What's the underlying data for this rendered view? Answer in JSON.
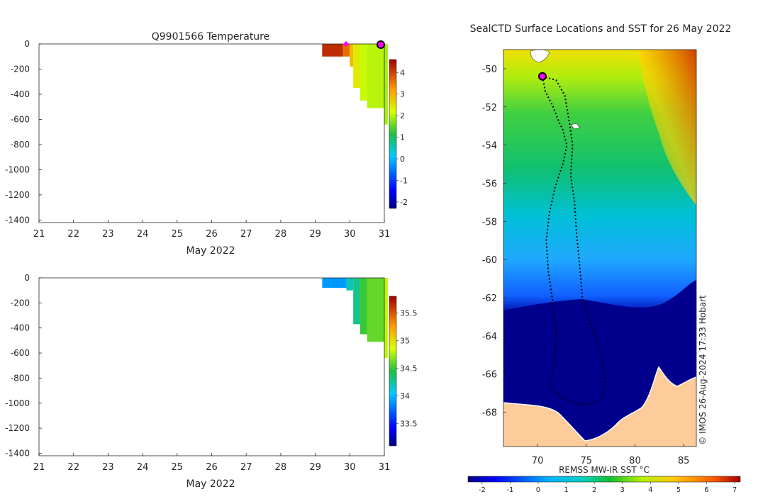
{
  "chart_data": [
    {
      "type": "heatmap",
      "title": "Q9901566  Temperature",
      "xlabel": "May 2022",
      "ylabel": "",
      "x_ticks": [
        "21",
        "22",
        "23",
        "24",
        "25",
        "26",
        "27",
        "28",
        "29",
        "30",
        "31"
      ],
      "xlim": [
        21,
        31
      ],
      "y_ticks": [
        "0",
        "-200",
        "-400",
        "-600",
        "-800",
        "-1000",
        "-1200",
        "-1400"
      ],
      "ylim": [
        -1420,
        0
      ],
      "colorbar": {
        "label": "",
        "ticks": [
          "4",
          "3",
          "2",
          "1",
          "0",
          "-1",
          "-2"
        ],
        "range": [
          -2.3,
          4.6
        ]
      },
      "profiles": [
        {
          "day": 29.2,
          "day_end": 29.8,
          "depth": -100,
          "value": 4.2
        },
        {
          "day": 29.8,
          "day_end": 30.0,
          "depth": -100,
          "value": 3.6
        },
        {
          "day": 30.0,
          "day_end": 30.1,
          "depth": -180,
          "value": 2.9
        },
        {
          "day": 30.1,
          "day_end": 30.3,
          "depth": -350,
          "value": 2.4
        },
        {
          "day": 30.3,
          "day_end": 30.5,
          "depth": -450,
          "value": 2.1
        },
        {
          "day": 30.5,
          "day_end": 31.0,
          "depth": -510,
          "value": 2.0
        },
        {
          "day": 31.0,
          "day_end": 31.1,
          "depth": -640,
          "value": 1.9
        }
      ],
      "markers": [
        {
          "day": 30.0,
          "label": "magenta-diamond"
        },
        {
          "day": 31.0,
          "label": "current-position"
        }
      ]
    },
    {
      "type": "heatmap",
      "title": "",
      "xlabel": "May 2022",
      "ylabel": "",
      "x_ticks": [
        "21",
        "22",
        "23",
        "24",
        "25",
        "26",
        "27",
        "28",
        "29",
        "30",
        "31"
      ],
      "xlim": [
        21,
        31
      ],
      "y_ticks": [
        "0",
        "-200",
        "-400",
        "-600",
        "-800",
        "-1000",
        "-1200",
        "-1400"
      ],
      "ylim": [
        -1420,
        0
      ],
      "colorbar": {
        "label": "",
        "ticks": [
          "35.5",
          "35",
          "34.5",
          "34",
          "33.5"
        ],
        "range": [
          33.1,
          35.8
        ]
      },
      "profiles": [
        {
          "day": 29.2,
          "day_end": 29.9,
          "depth": -80,
          "value": 33.9
        },
        {
          "day": 29.9,
          "day_end": 30.1,
          "depth": -100,
          "value": 34.2
        },
        {
          "day": 30.1,
          "day_end": 30.3,
          "depth": -370,
          "value": 34.3
        },
        {
          "day": 30.3,
          "day_end": 30.5,
          "depth": -450,
          "value": 34.5
        },
        {
          "day": 30.5,
          "day_end": 31.0,
          "depth": -510,
          "value": 34.6
        },
        {
          "day": 31.0,
          "day_end": 31.1,
          "depth": -640,
          "value": 34.8
        }
      ]
    },
    {
      "type": "heatmap",
      "title": "SealCTD Surface Locations and SST for 26 May 2022",
      "xlabel": "",
      "ylabel": "",
      "x_ticks": [
        "70",
        "75",
        "80",
        "85"
      ],
      "xlim": [
        66.5,
        86.3
      ],
      "y_ticks": [
        "-50",
        "-52",
        "-54",
        "-56",
        "-58",
        "-60",
        "-62",
        "-64",
        "-66",
        "-68"
      ],
      "ylim": [
        -69.8,
        -49.0
      ],
      "colorbar": {
        "label": "REMSS MW-IR SST °C",
        "ticks": [
          "-2",
          "-1",
          "0",
          "1",
          "2",
          "3",
          "4",
          "5",
          "6",
          "7"
        ],
        "range": [
          -2.5,
          7.2
        ]
      },
      "credit": "© IMOS 26-Aug-2024 17:33 Hobart",
      "track": [
        [
          70.5,
          -50.4
        ],
        [
          70.8,
          -51.2
        ],
        [
          71.6,
          -52.0
        ],
        [
          72.2,
          -52.8
        ],
        [
          72.6,
          -53.2
        ],
        [
          73.0,
          -54.0
        ],
        [
          72.6,
          -55.0
        ],
        [
          71.8,
          -56.2
        ],
        [
          71.2,
          -57.6
        ],
        [
          70.9,
          -59.0
        ],
        [
          71.1,
          -60.6
        ],
        [
          71.5,
          -62.0
        ],
        [
          71.9,
          -63.6
        ],
        [
          71.8,
          -65.0
        ],
        [
          71.3,
          -66.6
        ],
        [
          72.3,
          -67.2
        ],
        [
          73.6,
          -67.5
        ],
        [
          75.0,
          -67.6
        ],
        [
          76.4,
          -67.4
        ],
        [
          77.0,
          -66.6
        ],
        [
          76.6,
          -65.0
        ],
        [
          75.6,
          -63.6
        ],
        [
          74.6,
          -62.0
        ],
        [
          74.3,
          -60.2
        ],
        [
          74.0,
          -58.6
        ],
        [
          73.8,
          -57.0
        ],
        [
          73.4,
          -55.6
        ],
        [
          73.6,
          -54.0
        ],
        [
          73.2,
          -52.6
        ],
        [
          72.8,
          -51.4
        ],
        [
          71.9,
          -50.6
        ],
        [
          70.5,
          -50.4
        ]
      ],
      "current_position": [
        70.5,
        -50.4
      ]
    }
  ]
}
